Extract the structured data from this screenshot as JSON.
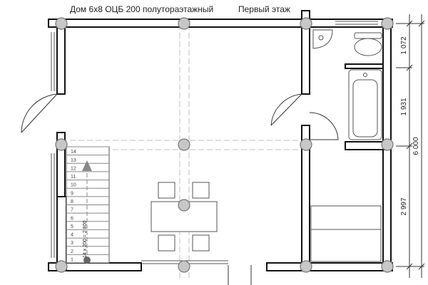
{
  "header": {
    "house_title": "Дом 6х8 ОЦБ 200 полутораэтажный",
    "floor_name": "Первый этаж"
  },
  "dimensions": {
    "total": "6 000",
    "segments": [
      "1 072",
      "1 931",
      "2 997"
    ]
  },
  "stairs": {
    "steps": [
      "1",
      "2",
      "3",
      "4",
      "5",
      "6",
      "7",
      "8",
      "9",
      "10",
      "11",
      "12",
      "13",
      "14"
    ],
    "note": "14 х 200 = 2 800"
  },
  "colors": {
    "wall": "#111111",
    "wall_fill": "#ffffff",
    "column": "#c7c7c7",
    "column_stroke": "#777777",
    "dashed": "#bfbfbf",
    "line": "#333333",
    "fixture": "#555555"
  }
}
